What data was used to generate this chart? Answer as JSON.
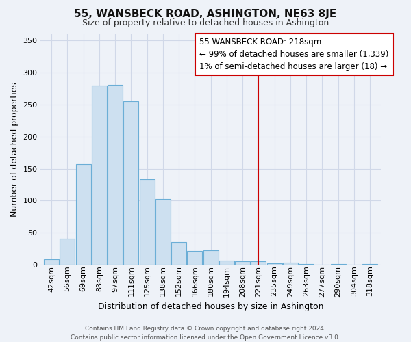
{
  "title": "55, WANSBECK ROAD, ASHINGTON, NE63 8JE",
  "subtitle": "Size of property relative to detached houses in Ashington",
  "xlabel": "Distribution of detached houses by size in Ashington",
  "ylabel": "Number of detached properties",
  "bar_labels": [
    "42sqm",
    "56sqm",
    "69sqm",
    "83sqm",
    "97sqm",
    "111sqm",
    "125sqm",
    "138sqm",
    "152sqm",
    "166sqm",
    "180sqm",
    "194sqm",
    "208sqm",
    "221sqm",
    "235sqm",
    "249sqm",
    "263sqm",
    "277sqm",
    "290sqm",
    "304sqm",
    "318sqm"
  ],
  "bar_heights": [
    9,
    41,
    157,
    280,
    281,
    255,
    134,
    103,
    35,
    21,
    23,
    7,
    6,
    5,
    2,
    3,
    1,
    0,
    1,
    0,
    1
  ],
  "bar_color": "#cde0f0",
  "bar_edge_color": "#6baed6",
  "vline_index": 13,
  "vline_color": "#cc0000",
  "annotation_title": "55 WANSBECK ROAD: 218sqm",
  "annotation_line1": "← 99% of detached houses are smaller (1,339)",
  "annotation_line2": "1% of semi-detached houses are larger (18) →",
  "annotation_box_facecolor": "white",
  "annotation_box_edgecolor": "#cc0000",
  "ylim": [
    0,
    360
  ],
  "yticks": [
    0,
    50,
    100,
    150,
    200,
    250,
    300,
    350
  ],
  "footer_line1": "Contains HM Land Registry data © Crown copyright and database right 2024.",
  "footer_line2": "Contains public sector information licensed under the Open Government Licence v3.0.",
  "background_color": "#eef2f8",
  "grid_color": "#d0d8e8",
  "title_fontsize": 11,
  "subtitle_fontsize": 9,
  "axis_label_fontsize": 9,
  "tick_fontsize": 8,
  "footer_fontsize": 6.5,
  "ann_fontsize": 8.5
}
